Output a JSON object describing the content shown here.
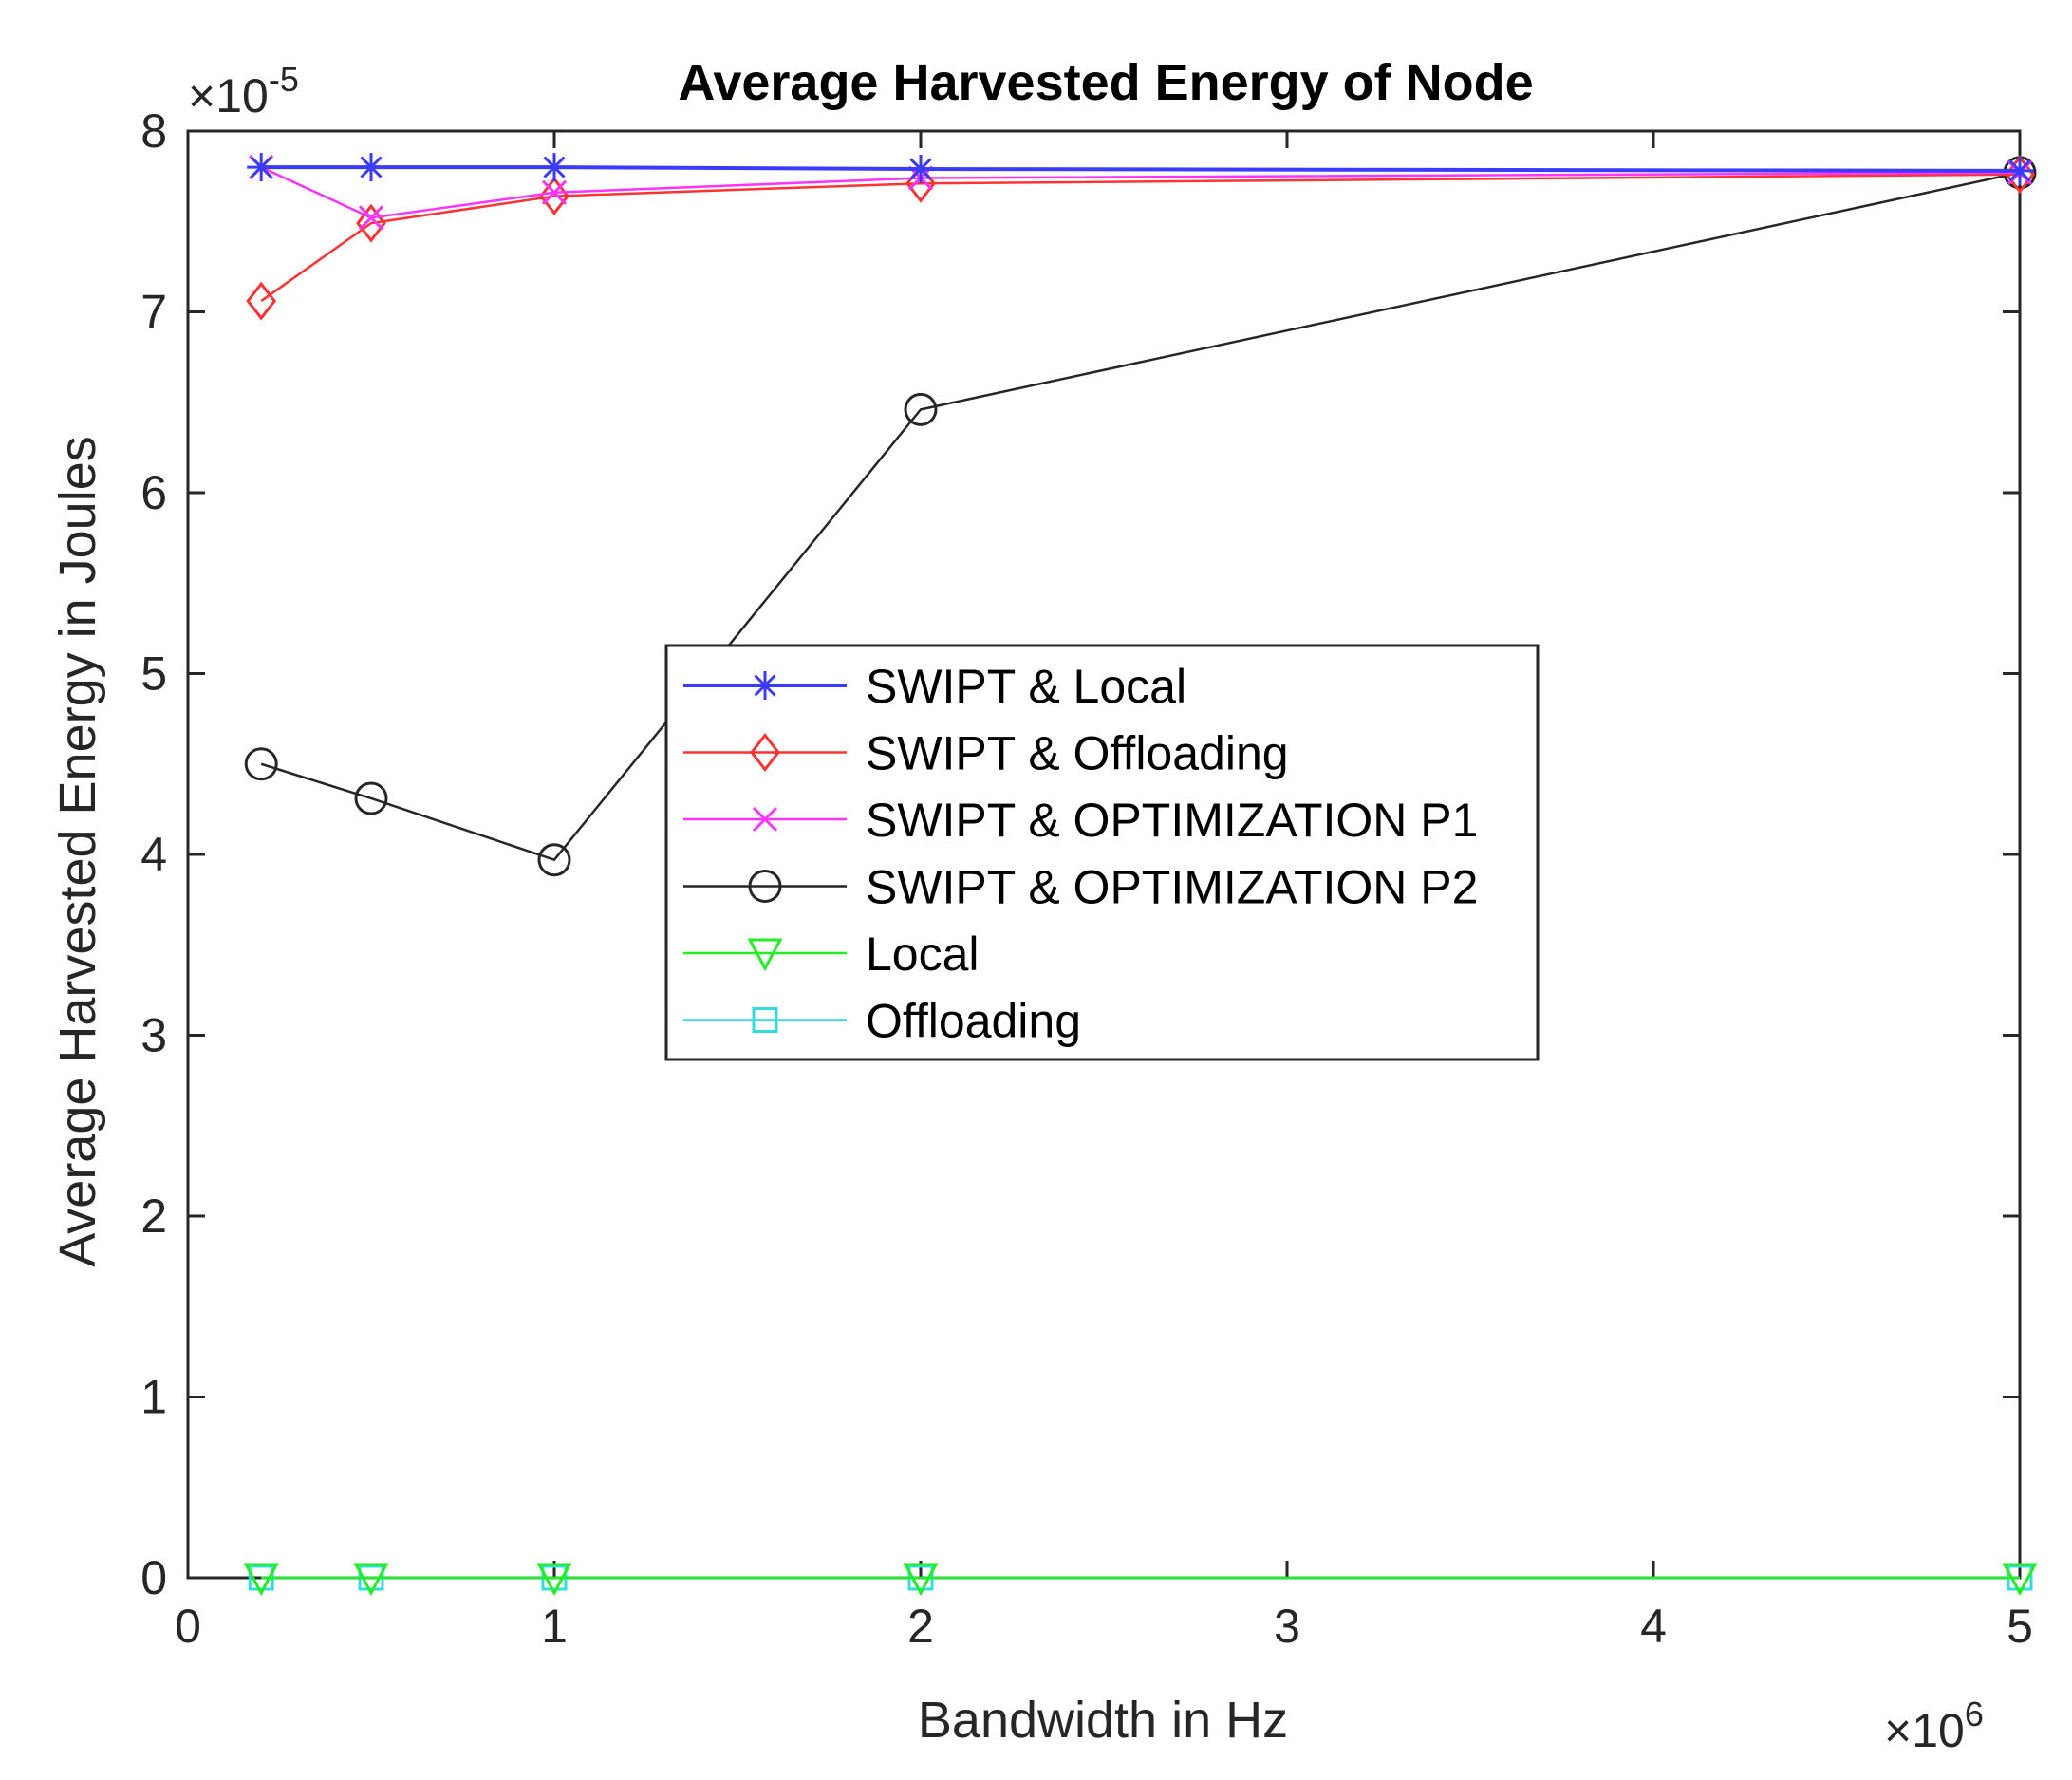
{
  "chart_data": {
    "type": "line",
    "title": "Average Harvested Energy of Node",
    "xlabel": "Bandwidth in Hz",
    "ylabel": "Average Harvested Energy in Joules",
    "x_exponent_label": "×10",
    "x_exponent": "6",
    "y_exponent_label": "×10",
    "y_exponent": "-5",
    "xlim": [
      0,
      5
    ],
    "ylim": [
      0,
      8
    ],
    "x_ticks": [
      "0",
      "1",
      "2",
      "3",
      "4",
      "5"
    ],
    "y_ticks": [
      "0",
      "1",
      "2",
      "3",
      "4",
      "5",
      "6",
      "7",
      "8"
    ],
    "x": [
      0.2,
      0.5,
      1,
      2,
      5
    ],
    "legend_position": "center",
    "series": [
      {
        "name": "SWIPT & Local",
        "values": [
          7.8,
          7.8,
          7.8,
          7.79,
          7.78
        ],
        "color": "#3b3bff",
        "marker": "asterisk",
        "width": 4
      },
      {
        "name": "SWIPT & Offloading",
        "values": [
          7.06,
          7.49,
          7.64,
          7.71,
          7.76
        ],
        "color": "#ff3333",
        "marker": "diamond",
        "width": 2.5
      },
      {
        "name": "SWIPT & OPTIMIZATION P1",
        "values": [
          7.8,
          7.52,
          7.66,
          7.74,
          7.77
        ],
        "color": "#ff33ff",
        "marker": "x",
        "width": 2.5
      },
      {
        "name": "SWIPT & OPTIMIZATION P2",
        "values": [
          4.5,
          4.31,
          3.97,
          6.46,
          7.77
        ],
        "color": "#262626",
        "marker": "circle",
        "width": 2.5
      },
      {
        "name": "Local",
        "values": [
          0,
          0,
          0,
          0,
          0
        ],
        "color": "#22ee22",
        "marker": "triangle-down",
        "width": 2.5
      },
      {
        "name": "Offloading",
        "values": [
          0,
          0,
          0,
          0,
          0
        ],
        "color": "#33dddd",
        "marker": "square",
        "width": 2.5
      }
    ]
  }
}
